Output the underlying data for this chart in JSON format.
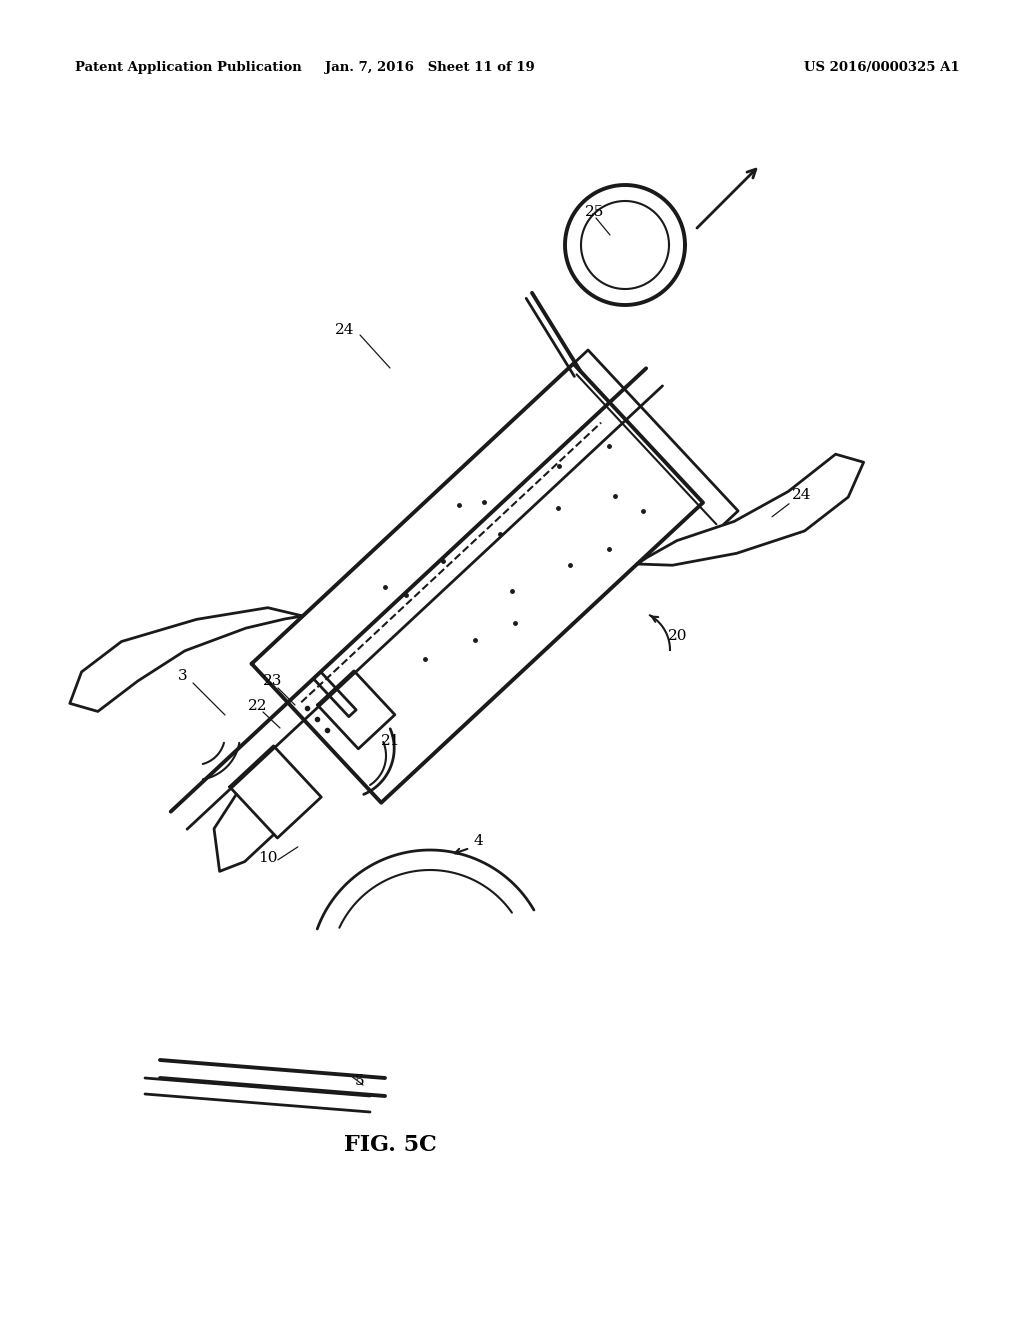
{
  "header_left": "Patent Application Publication",
  "header_mid": "Jan. 7, 2016   Sheet 11 of 19",
  "header_right": "US 2016/0000325 A1",
  "figure_label": "FIG. 5C",
  "bg": "#ffffff",
  "lc": "#1a1a1a"
}
